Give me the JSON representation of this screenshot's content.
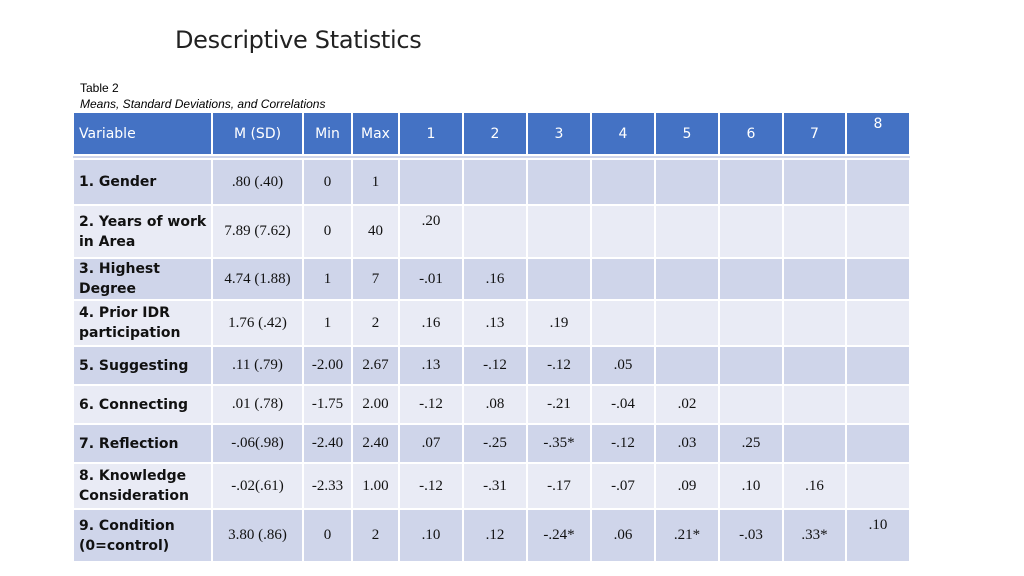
{
  "slide": {
    "title": "Descriptive Statistics",
    "caption_label": "Table 2",
    "caption_title": "Means, Standard Deviations, and Correlations"
  },
  "table": {
    "headers": [
      "Variable",
      "M (SD)",
      "Min",
      "Max",
      "1",
      "2",
      "3",
      "4",
      "5",
      "6",
      "7",
      "8"
    ],
    "rows": [
      {
        "variable": "1. Gender",
        "msd": ".80 (.40)",
        "min": "0",
        "max": "1",
        "r": [
          "",
          "",
          "",
          "",
          "",
          "",
          "",
          ""
        ]
      },
      {
        "variable": "2. Years of work in Area",
        "msd": "7.89 (7.62)",
        "min": "0",
        "max": "40",
        "r": [
          ".20",
          "",
          "",
          "",
          "",
          "",
          "",
          ""
        ]
      },
      {
        "variable": "3. Highest Degree",
        "msd": "4.74 (1.88)",
        "min": "1",
        "max": "7",
        "r": [
          "-.01",
          ".16",
          "",
          "",
          "",
          "",
          "",
          ""
        ]
      },
      {
        "variable": "4. Prior IDR participation",
        "msd": "1.76 (.42)",
        "min": "1",
        "max": "2",
        "r": [
          ".16",
          ".13",
          ".19",
          "",
          "",
          "",
          "",
          ""
        ]
      },
      {
        "variable": "5. Suggesting",
        "msd": ".11 (.79)",
        "min": "-2.00",
        "max": "2.67",
        "r": [
          ".13",
          "-.12",
          "-.12",
          ".05",
          "",
          "",
          "",
          ""
        ]
      },
      {
        "variable": "6. Connecting",
        "msd": ".01 (.78)",
        "min": "-1.75",
        "max": "2.00",
        "r": [
          "-.12",
          ".08",
          "-.21",
          "-.04",
          ".02",
          "",
          "",
          ""
        ]
      },
      {
        "variable": "7. Reflection",
        "msd": "-.06(.98)",
        "min": "-2.40",
        "max": "2.40",
        "r": [
          ".07",
          "-.25",
          "-.35*",
          "-.12",
          ".03",
          ".25",
          "",
          ""
        ]
      },
      {
        "variable": "8. Knowledge Consideration",
        "msd": "-.02(.61)",
        "min": "-2.33",
        "max": "1.00",
        "r": [
          "-.12",
          "-.31",
          "-.17",
          "-.07",
          ".09",
          ".10",
          ".16",
          ""
        ]
      },
      {
        "variable": "9. Condition (0=control)",
        "msd": "3.80 (.86)",
        "min": "0",
        "max": "2",
        "r": [
          ".10",
          ".12",
          "-.24*",
          ".06",
          ".21*",
          "-.03",
          ".33*",
          ".10"
        ]
      }
    ]
  },
  "colors": {
    "header_bg": "#4472c4",
    "row_band_dark": "#cfd5ea",
    "row_band_light": "#e9ebf5"
  }
}
